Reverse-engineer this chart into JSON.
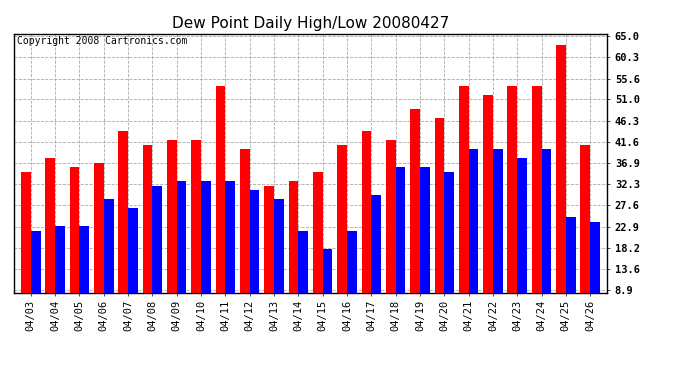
{
  "title": "Dew Point Daily High/Low 20080427",
  "copyright": "Copyright 2008 Cartronics.com",
  "dates": [
    "04/03",
    "04/04",
    "04/05",
    "04/06",
    "04/07",
    "04/08",
    "04/09",
    "04/10",
    "04/11",
    "04/12",
    "04/13",
    "04/14",
    "04/15",
    "04/16",
    "04/17",
    "04/18",
    "04/19",
    "04/20",
    "04/21",
    "04/22",
    "04/23",
    "04/24",
    "04/25",
    "04/26"
  ],
  "highs": [
    35,
    38,
    36,
    37,
    44,
    41,
    42,
    42,
    54,
    40,
    32,
    33,
    35,
    41,
    44,
    42,
    49,
    47,
    54,
    52,
    54,
    54,
    63,
    41
  ],
  "lows": [
    22,
    23,
    23,
    29,
    27,
    32,
    33,
    33,
    33,
    31,
    29,
    22,
    18,
    22,
    30,
    36,
    36,
    35,
    40,
    40,
    38,
    40,
    25,
    24
  ],
  "high_color": "#ff0000",
  "low_color": "#0000ff",
  "bg_color": "#ffffff",
  "plot_bg_color": "#ffffff",
  "grid_color": "#aaaaaa",
  "yticks": [
    8.9,
    13.6,
    18.2,
    22.9,
    27.6,
    32.3,
    36.9,
    41.6,
    46.3,
    51.0,
    55.6,
    60.3,
    65.0
  ],
  "ymin": 8.9,
  "ymax": 65.0,
  "title_fontsize": 11,
  "tick_fontsize": 7.5,
  "copyright_fontsize": 7
}
